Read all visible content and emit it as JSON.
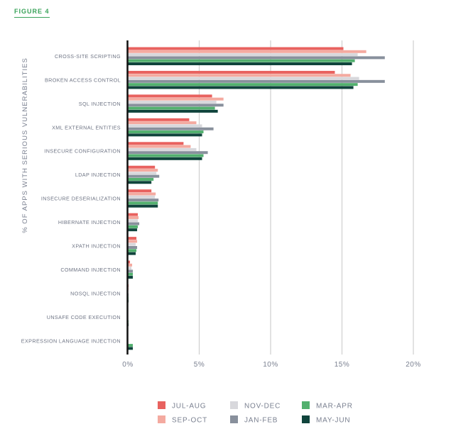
{
  "figure_label": "FIGURE 4",
  "chart_data": {
    "type": "bar",
    "orientation": "horizontal",
    "title": "",
    "xlabel": "",
    "ylabel": "% OF APPS WITH SERIOUS VULNERABILITIES",
    "xlim": [
      0,
      20
    ],
    "xticks": [
      0,
      5,
      10,
      15,
      20
    ],
    "xtick_labels": [
      "0%",
      "5%",
      "10%",
      "15%",
      "20%"
    ],
    "grid": true,
    "legend_position": "bottom",
    "categories": [
      "CROSS-SITE SCRIPTING",
      "BROKEN ACCESS CONTROL",
      "SQL INJECTION",
      "XML EXTERNAL ENTITIES",
      "INSECURE CONFIGURATION",
      "LDAP INJECTION",
      "INSECURE DESERIALIZATION",
      "HIBERNATE INJECTION",
      "XPATH INJECTION",
      "COMMAND INJECTION",
      "NOSQL INJECTION",
      "UNSAFE CODE EXECUTION",
      "EXPRESSION LANGUAGE INJECTION"
    ],
    "series": [
      {
        "name": "JUL-AUG",
        "color": "#e8625f",
        "values": [
          15.1,
          14.5,
          5.9,
          4.3,
          3.9,
          1.9,
          1.65,
          0.7,
          0.6,
          0.15,
          0.05,
          0,
          0
        ]
      },
      {
        "name": "SEP-OCT",
        "color": "#f4aaa0",
        "values": [
          16.7,
          15.6,
          6.7,
          4.8,
          4.4,
          2.1,
          1.95,
          0.75,
          0.65,
          0.3,
          0.05,
          0,
          0
        ]
      },
      {
        "name": "NOV-DEC",
        "color": "#d8d8dc",
        "values": [
          16.1,
          16.2,
          6.2,
          5.2,
          4.8,
          2.0,
          1.9,
          0.7,
          0.55,
          0.25,
          0,
          0,
          0
        ]
      },
      {
        "name": "JAN-FEB",
        "color": "#88909c",
        "values": [
          18.0,
          18.0,
          6.7,
          6.0,
          5.6,
          2.2,
          2.15,
          0.8,
          0.65,
          0.35,
          0.05,
          0,
          0
        ]
      },
      {
        "name": "MAR-APR",
        "color": "#52b06e",
        "values": [
          15.9,
          16.1,
          6.1,
          5.3,
          5.3,
          1.8,
          2.1,
          0.7,
          0.6,
          0.35,
          0.05,
          0.05,
          0.35
        ]
      },
      {
        "name": "MAY-JUN",
        "color": "#10443c",
        "values": [
          15.7,
          15.8,
          6.3,
          5.2,
          5.2,
          1.65,
          2.1,
          0.65,
          0.55,
          0.35,
          0.05,
          0.05,
          0.35
        ]
      }
    ],
    "legend_order": [
      0,
      2,
      4,
      1,
      3,
      5
    ]
  }
}
